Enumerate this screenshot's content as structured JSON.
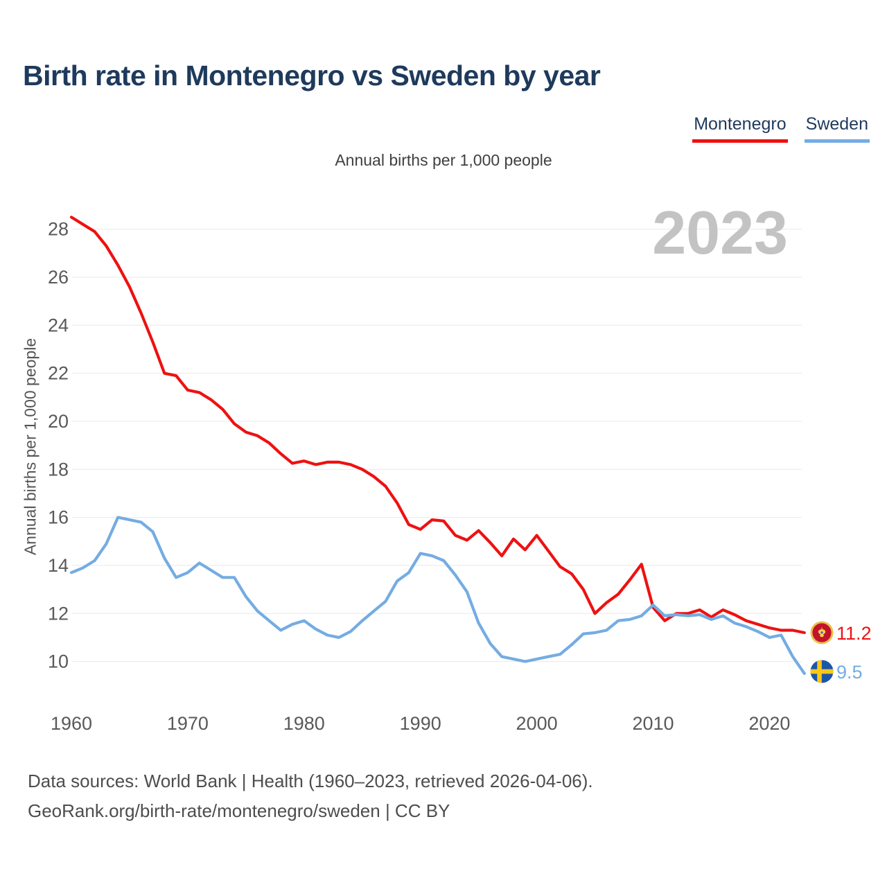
{
  "page": {
    "title": "Birth rate in Montenegro vs Sweden by year",
    "subtitle": "Annual births per 1,000 people"
  },
  "legend": [
    {
      "label": "Montenegro",
      "color": "#ee1111"
    },
    {
      "label": "Sweden",
      "color": "#74ace2"
    }
  ],
  "watermark": "2023",
  "y_axis_title": "Annual births per 1,000 people",
  "end_labels": [
    {
      "series": "Montenegro",
      "value": "11.2",
      "flag": "montenegro-flag-icon"
    },
    {
      "series": "Sweden",
      "value": "9.5",
      "flag": "sweden-flag-icon"
    }
  ],
  "footer": {
    "line1": "Data sources: World Bank | Health (1960–2023, retrieved 2026-04-06).",
    "line2": "GeoRank.org/birth-rate/montenegro/sweden | CC BY"
  },
  "chart_data": {
    "type": "line",
    "title": "Birth rate in Montenegro vs Sweden by year",
    "subtitle": "Annual births per 1,000 people",
    "xlabel": "",
    "ylabel": "Annual births per 1,000 people",
    "ylim": [
      9,
      29
    ],
    "grid": true,
    "legend_position": "top-right",
    "y_ticks": [
      10,
      12,
      14,
      16,
      18,
      20,
      22,
      24,
      26,
      28
    ],
    "x_ticks": [
      1960,
      1970,
      1980,
      1990,
      2000,
      2010,
      2020
    ],
    "x": [
      1960,
      1961,
      1962,
      1963,
      1964,
      1965,
      1966,
      1967,
      1968,
      1969,
      1970,
      1971,
      1972,
      1973,
      1974,
      1975,
      1976,
      1977,
      1978,
      1979,
      1980,
      1981,
      1982,
      1983,
      1984,
      1985,
      1986,
      1987,
      1988,
      1989,
      1990,
      1991,
      1992,
      1993,
      1994,
      1995,
      1996,
      1997,
      1998,
      1999,
      2000,
      2001,
      2002,
      2003,
      2004,
      2005,
      2006,
      2007,
      2008,
      2009,
      2010,
      2011,
      2012,
      2013,
      2014,
      2015,
      2016,
      2017,
      2018,
      2019,
      2020,
      2021,
      2022,
      2023
    ],
    "series": [
      {
        "name": "Montenegro",
        "color": "#ee1111",
        "end_value_label": "11.2",
        "values": [
          28.5,
          28.2,
          27.9,
          27.3,
          26.5,
          25.6,
          24.5,
          23.3,
          22.0,
          21.9,
          21.3,
          21.2,
          20.9,
          20.5,
          19.9,
          19.55,
          19.4,
          19.1,
          18.65,
          18.25,
          18.35,
          18.2,
          18.3,
          18.3,
          18.2,
          18.0,
          17.7,
          17.3,
          16.6,
          15.7,
          15.5,
          15.9,
          15.85,
          15.25,
          15.05,
          15.45,
          14.95,
          14.4,
          15.1,
          14.65,
          15.25,
          14.6,
          13.95,
          13.65,
          13.0,
          12.0,
          12.45,
          12.8,
          13.4,
          14.05,
          12.25,
          11.7,
          12.0,
          12.0,
          12.15,
          11.85,
          12.15,
          11.95,
          11.7,
          11.55,
          11.4,
          11.3,
          11.3,
          11.2
        ]
      },
      {
        "name": "Sweden",
        "color": "#74ace2",
        "end_value_label": "9.5",
        "values": [
          13.7,
          13.9,
          14.2,
          14.9,
          16.0,
          15.9,
          15.8,
          15.4,
          14.3,
          13.5,
          13.7,
          14.1,
          13.8,
          13.5,
          13.5,
          12.7,
          12.1,
          11.7,
          11.3,
          11.55,
          11.7,
          11.35,
          11.1,
          11.0,
          11.25,
          11.7,
          12.1,
          12.5,
          13.35,
          13.7,
          14.5,
          14.4,
          14.2,
          13.6,
          12.9,
          11.6,
          10.75,
          10.2,
          10.1,
          10.0,
          10.1,
          10.2,
          10.3,
          10.7,
          11.15,
          11.2,
          11.3,
          11.7,
          11.75,
          11.9,
          12.35,
          11.9,
          11.95,
          11.9,
          11.95,
          11.75,
          11.9,
          11.6,
          11.45,
          11.25,
          11.0,
          11.1,
          10.2,
          9.5
        ]
      }
    ]
  }
}
